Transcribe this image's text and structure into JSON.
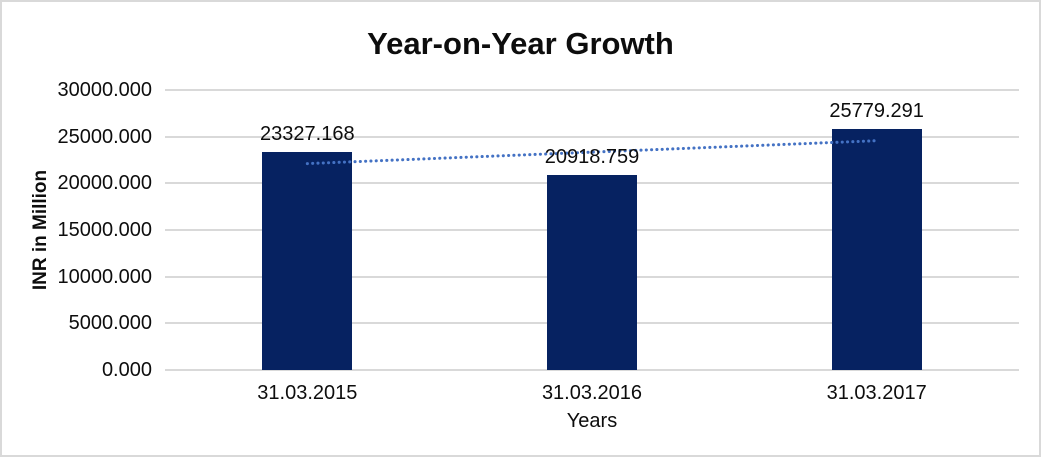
{
  "frame": {
    "background": "#ffffff",
    "border_color": "#d9d9d9"
  },
  "chart_data": {
    "type": "bar",
    "title": "Year-on-Year Growth",
    "xlabel": "Years",
    "ylabel": "INR in Million",
    "categories": [
      "31.03.2015",
      "31.03.2016",
      "31.03.2017"
    ],
    "series": [
      {
        "name": "INR in Million",
        "values": [
          23327.168,
          20918.759,
          25779.291
        ]
      }
    ],
    "data_labels": [
      "23327.168",
      "20918.759",
      "25779.291"
    ],
    "ylim": [
      0,
      30000
    ],
    "ytick_step": 5000,
    "ytick_labels": [
      "0.000",
      "5000.000",
      "10000.000",
      "15000.000",
      "20000.000",
      "25000.000",
      "30000.000"
    ],
    "grid": true,
    "legend": "none",
    "colors": {
      "bar_fill": "#062261",
      "trendline": "#4472c4",
      "gridline": "#d9d9d9",
      "text": "#0d0d0d"
    },
    "trendline": {
      "type": "linear",
      "style": "dotted",
      "start_value": 22116,
      "end_value": 24568
    }
  }
}
